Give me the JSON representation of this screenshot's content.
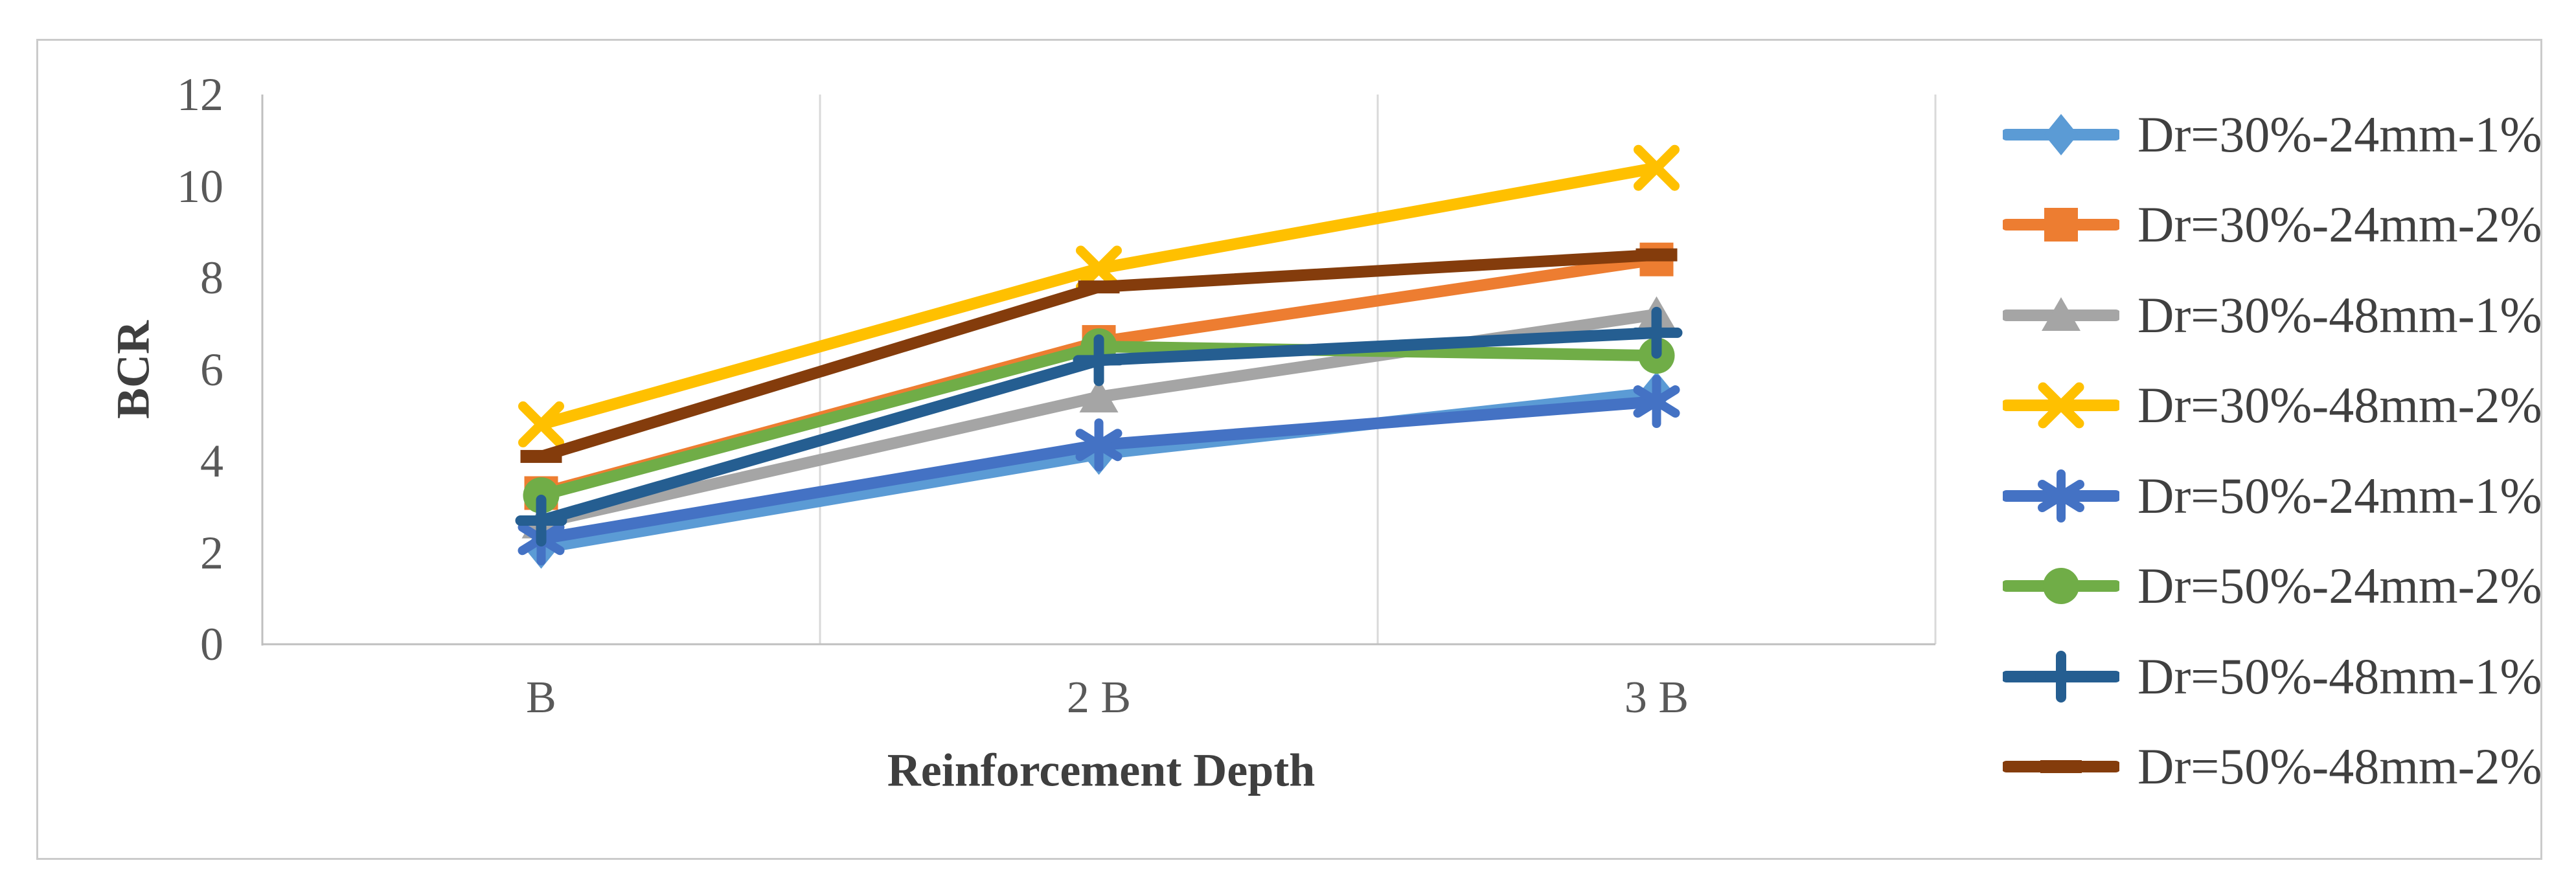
{
  "figure": {
    "background": "#FFFFFF",
    "border_color": "#CBCBCB"
  },
  "chart_data": {
    "type": "line",
    "title": "",
    "xlabel": "Reinforcement Depth",
    "ylabel": "BCR",
    "categories": [
      "B",
      "2 B",
      "3 B"
    ],
    "ylim": [
      0,
      12
    ],
    "yticks": [
      0,
      2,
      4,
      6,
      8,
      10,
      12
    ],
    "grid": "vertical-category-boundaries",
    "legend_position": "right",
    "axis_color": "#BFBFBF",
    "gridline_color": "#D9D9D9",
    "tick_label_color": "#595959",
    "legend_text_color": "#404040",
    "series": [
      {
        "name": "Dr=30%-24mm-1%",
        "marker": "diamond",
        "color": "#5B9BD5",
        "values": [
          2.1,
          4.15,
          5.5
        ]
      },
      {
        "name": "Dr=30%-24mm-2%",
        "marker": "square",
        "color": "#ED7D31",
        "values": [
          3.3,
          6.6,
          8.4
        ]
      },
      {
        "name": "Dr=30%-48mm-1%",
        "marker": "triangle",
        "color": "#A5A5A5",
        "values": [
          2.65,
          5.4,
          7.2
        ]
      },
      {
        "name": "Dr=30%-48mm-2%",
        "marker": "x",
        "color": "#FFC000",
        "values": [
          4.8,
          8.2,
          10.4
        ]
      },
      {
        "name": "Dr=50%-24mm-1%",
        "marker": "asterisk",
        "color": "#4472C4",
        "values": [
          2.3,
          4.35,
          5.3
        ]
      },
      {
        "name": "Dr=50%-24mm-2%",
        "marker": "circle",
        "color": "#70AD47",
        "values": [
          3.25,
          6.5,
          6.3
        ]
      },
      {
        "name": "Dr=50%-48mm-1%",
        "marker": "plus",
        "color": "#255E91",
        "values": [
          2.7,
          6.2,
          6.8
        ]
      },
      {
        "name": "Dr=50%-48mm-2%",
        "marker": "dash",
        "color": "#843C0C",
        "values": [
          4.1,
          7.8,
          8.5
        ]
      }
    ]
  }
}
